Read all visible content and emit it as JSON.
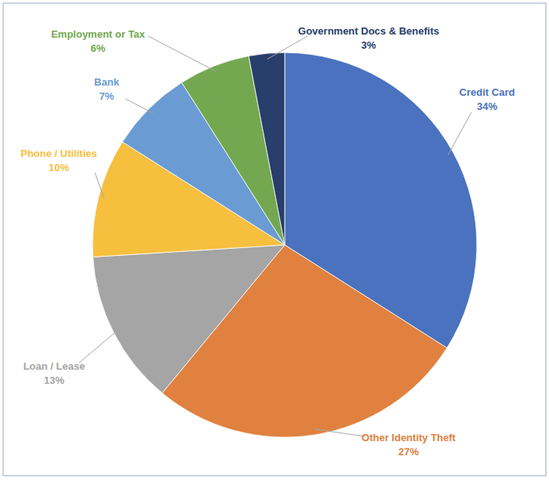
{
  "chart_data": {
    "type": "pie",
    "categories": [
      "Credit Card",
      "Other Identity Theft",
      "Loan / Lease",
      "Phone / Utilities",
      "Bank",
      "Employment or Tax",
      "Government Docs & Benefits"
    ],
    "values": [
      34,
      27,
      13,
      10,
      7,
      6,
      3
    ],
    "value_labels": [
      "34%",
      "27%",
      "13%",
      "10%",
      "7%",
      "6%",
      "3%"
    ],
    "colors": [
      "#4a72be",
      "#e0813f",
      "#a5a5a5",
      "#f6bf3e",
      "#6a9bd3",
      "#73a850",
      "#283e6b"
    ],
    "data_labels": true
  }
}
